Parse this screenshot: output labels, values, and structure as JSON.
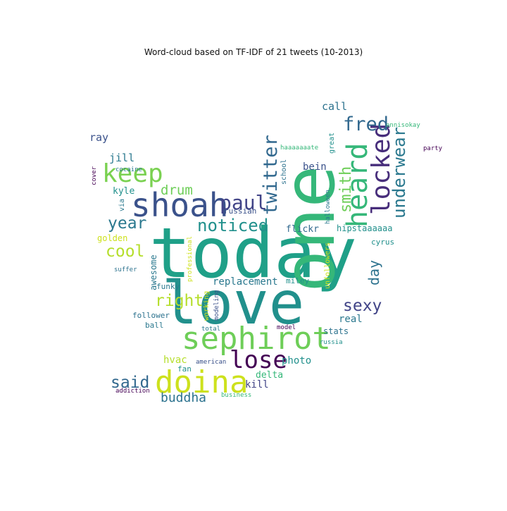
{
  "chart_data": {
    "type": "wordcloud",
    "title": "Word-cloud based on TF-IDF of 21 tweets (10-2013)",
    "words": [
      {
        "text": "today",
        "weight": 100,
        "color": "#1fa088",
        "orientation": "horizontal"
      },
      {
        "text": "one",
        "weight": 90,
        "color": "#35b779",
        "orientation": "vertical"
      },
      {
        "text": "love",
        "weight": 80,
        "color": "#21908c",
        "orientation": "horizontal"
      },
      {
        "text": "shoah",
        "weight": 44,
        "color": "#3b528b",
        "orientation": "horizontal"
      },
      {
        "text": "heard",
        "weight": 48,
        "color": "#35b779",
        "orientation": "vertical"
      },
      {
        "text": "sephirot",
        "weight": 46,
        "color": "#6ece58",
        "orientation": "horizontal"
      },
      {
        "text": "doina",
        "weight": 44,
        "color": "#cde11d",
        "orientation": "horizontal"
      },
      {
        "text": "locked",
        "weight": 40,
        "color": "#472d7b",
        "orientation": "vertical"
      },
      {
        "text": "keep",
        "weight": 36,
        "color": "#7ad151",
        "orientation": "horizontal"
      },
      {
        "text": "lose",
        "weight": 34,
        "color": "#440154",
        "orientation": "horizontal"
      },
      {
        "text": "twitter",
        "weight": 27,
        "color": "#31688e",
        "orientation": "vertical"
      },
      {
        "text": "paul",
        "weight": 28,
        "color": "#414487",
        "orientation": "horizontal"
      },
      {
        "text": "underwear",
        "weight": 26,
        "color": "#2a788e",
        "orientation": "vertical"
      },
      {
        "text": "fred",
        "weight": 27,
        "color": "#31688e",
        "orientation": "horizontal"
      },
      {
        "text": "smith",
        "weight": 26,
        "color": "#6ece58",
        "orientation": "vertical"
      },
      {
        "text": "noticed",
        "weight": 25,
        "color": "#21908c",
        "orientation": "horizontal"
      },
      {
        "text": "year",
        "weight": 24,
        "color": "#2a788e",
        "orientation": "horizontal"
      },
      {
        "text": "sexy",
        "weight": 24,
        "color": "#414487",
        "orientation": "horizontal"
      },
      {
        "text": "cool",
        "weight": 23,
        "color": "#b5de2b",
        "orientation": "horizontal"
      },
      {
        "text": "right",
        "weight": 24,
        "color": "#b5de2b",
        "orientation": "horizontal"
      },
      {
        "text": "said",
        "weight": 24,
        "color": "#31688e",
        "orientation": "horizontal"
      },
      {
        "text": "day",
        "weight": 20,
        "color": "#2c728e",
        "orientation": "vertical"
      },
      {
        "text": "drum",
        "weight": 19,
        "color": "#6ece58",
        "orientation": "horizontal"
      },
      {
        "text": "buddha",
        "weight": 18,
        "color": "#2c728e",
        "orientation": "horizontal"
      },
      {
        "text": "call",
        "weight": 15,
        "color": "#2c728e",
        "orientation": "horizontal"
      },
      {
        "text": "ray",
        "weight": 15,
        "color": "#3b528b",
        "orientation": "horizontal"
      },
      {
        "text": "jill",
        "weight": 15,
        "color": "#2a788e",
        "orientation": "horizontal"
      },
      {
        "text": "kyle",
        "weight": 14,
        "color": "#21908c",
        "orientation": "horizontal"
      },
      {
        "text": "replacement",
        "weight": 14,
        "color": "#2a788e",
        "orientation": "horizontal"
      },
      {
        "text": "awesome",
        "weight": 13,
        "color": "#2a788e",
        "orientation": "vertical"
      },
      {
        "text": "hvac",
        "weight": 14,
        "color": "#b5de2b",
        "orientation": "horizontal"
      },
      {
        "text": "photo",
        "weight": 14,
        "color": "#21908c",
        "orientation": "horizontal"
      },
      {
        "text": "real",
        "weight": 14,
        "color": "#2a788e",
        "orientation": "horizontal"
      },
      {
        "text": "bein",
        "weight": 14,
        "color": "#3b528b",
        "orientation": "horizontal"
      },
      {
        "text": "kill",
        "weight": 14,
        "color": "#414487",
        "orientation": "horizontal"
      },
      {
        "text": "flickr",
        "weight": 13,
        "color": "#31688e",
        "orientation": "horizontal"
      },
      {
        "text": "delta",
        "weight": 13,
        "color": "#35b779",
        "orientation": "horizontal"
      },
      {
        "text": "golden",
        "weight": 12,
        "color": "#cde11d",
        "orientation": "horizontal"
      },
      {
        "text": "hipstaaaaaa",
        "weight": 12,
        "color": "#21908c",
        "orientation": "horizontal"
      },
      {
        "text": "stats",
        "weight": 12,
        "color": "#2c728e",
        "orientation": "horizontal"
      },
      {
        "text": "funky",
        "weight": 11,
        "color": "#2a788e",
        "orientation": "horizontal"
      },
      {
        "text": "follower",
        "weight": 11,
        "color": "#2c728e",
        "orientation": "horizontal"
      },
      {
        "text": "ball",
        "weight": 11,
        "color": "#2a788e",
        "orientation": "horizontal"
      },
      {
        "text": "miley",
        "weight": 11,
        "color": "#21908c",
        "orientation": "horizontal"
      },
      {
        "text": "cyrus",
        "weight": 11,
        "color": "#21908c",
        "orientation": "horizontal"
      },
      {
        "text": "fan",
        "weight": 11,
        "color": "#21908c",
        "orientation": "horizontal"
      },
      {
        "text": "russian",
        "weight": 11,
        "color": "#3b528b",
        "orientation": "horizontal"
      },
      {
        "text": "great",
        "weight": 10,
        "color": "#21908c",
        "orientation": "vertical"
      },
      {
        "text": "school",
        "weight": 10,
        "color": "#2c728e",
        "orientation": "vertical"
      },
      {
        "text": "unfollowers",
        "weight": 10,
        "color": "#cde11d",
        "orientation": "vertical"
      },
      {
        "text": "halloween",
        "weight": 9,
        "color": "#2a788e",
        "orientation": "vertical"
      },
      {
        "text": "working",
        "weight": 10,
        "color": "#cde11d",
        "orientation": "vertical"
      },
      {
        "text": "modeling",
        "weight": 9,
        "color": "#3b528b",
        "orientation": "vertical"
      },
      {
        "text": "professional",
        "weight": 9,
        "color": "#cde11d",
        "orientation": "vertical"
      },
      {
        "text": "via",
        "weight": 10,
        "color": "#2a788e",
        "orientation": "vertical"
      },
      {
        "text": "cover",
        "weight": 9,
        "color": "#440154",
        "orientation": "vertical"
      },
      {
        "text": "suffer",
        "weight": 9,
        "color": "#2c728e",
        "orientation": "horizontal"
      },
      {
        "text": "cocaine",
        "weight": 9,
        "color": "#2a788e",
        "orientation": "horizontal"
      },
      {
        "text": "haaaaaaate",
        "weight": 9,
        "color": "#35b779",
        "orientation": "horizontal"
      },
      {
        "text": "annisokay",
        "weight": 9,
        "color": "#35b779",
        "orientation": "horizontal"
      },
      {
        "text": "party",
        "weight": 9,
        "color": "#440154",
        "orientation": "horizontal"
      },
      {
        "text": "total",
        "weight": 9,
        "color": "#2a788e",
        "orientation": "horizontal"
      },
      {
        "text": "model",
        "weight": 9,
        "color": "#440154",
        "orientation": "horizontal"
      },
      {
        "text": "american",
        "weight": 9,
        "color": "#3b528b",
        "orientation": "horizontal"
      },
      {
        "text": "russia",
        "weight": 9,
        "color": "#21908c",
        "orientation": "horizontal"
      },
      {
        "text": "addiction",
        "weight": 9,
        "color": "#440154",
        "orientation": "horizontal"
      },
      {
        "text": "business",
        "weight": 9,
        "color": "#35b779",
        "orientation": "horizontal"
      }
    ]
  }
}
